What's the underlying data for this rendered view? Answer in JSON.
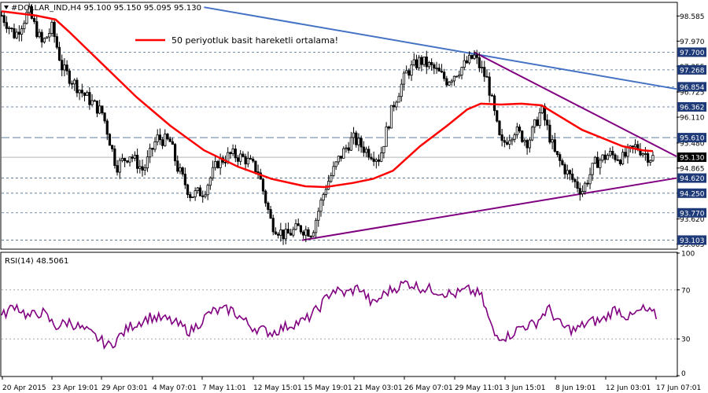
{
  "header": {
    "title": "#DOLLAR_IND,H4  95.100 95.150 95.095 95.130",
    "legend": "50 periyotluk basit hareketli ortalama!"
  },
  "rsi": {
    "title": "RSI(14) 48.5061",
    "levels": [
      "100",
      "70",
      "30",
      "0"
    ]
  },
  "colors": {
    "background": "#ffffff",
    "frame": "#000000",
    "candle": "#000000",
    "ma": "#ff0000",
    "rsi": "#800080",
    "blue_trend": "#4472c4",
    "purple_trend": "#800080",
    "grid": "#4a6a8a",
    "label_bg": "#1e3a78",
    "current_label_bg": "#000000"
  },
  "chart_data": {
    "type": "candlestick",
    "symbol": "#DOLLAR_IND",
    "timeframe": "H4",
    "last_price": 95.13,
    "ylim": [
      92.9,
      98.9
    ],
    "y_ticks": [
      "98.585",
      "97.970",
      "97.355",
      "96.725",
      "96.110",
      "95.480",
      "94.865",
      "94.250",
      "93.620",
      "93.005"
    ],
    "price_labels": [
      {
        "text": "97.700",
        "value": 97.7
      },
      {
        "text": "97.268",
        "value": 97.268
      },
      {
        "text": "96.854",
        "value": 96.854
      },
      {
        "text": "96.362",
        "value": 96.362
      },
      {
        "text": "95.610",
        "value": 95.61
      },
      {
        "text": "94.620",
        "value": 94.62
      },
      {
        "text": "94.250",
        "value": 94.25
      },
      {
        "text": "93.770",
        "value": 93.77
      },
      {
        "text": "93.103",
        "value": 93.103
      }
    ],
    "current_label": {
      "text": "95.130",
      "value": 95.13
    },
    "x_labels": [
      "20 Apr 2015",
      "23 Apr 19:01",
      "29 Apr 03:01",
      "4 May 07:01",
      "7 May 11:01",
      "12 May 15:01",
      "15 May 19:01",
      "21 May 03:01",
      "26 May 07:01",
      "29 May 11:01",
      "3 Jun 15:01",
      "8 Jun 19:01",
      "12 Jun 03:01",
      "17 Jun 07:01"
    ],
    "price_path": [
      [
        0,
        98.6
      ],
      [
        0.02,
        98.1
      ],
      [
        0.04,
        98.7
      ],
      [
        0.06,
        97.9
      ],
      [
        0.075,
        98.3
      ],
      [
        0.09,
        97.3
      ],
      [
        0.12,
        96.7
      ],
      [
        0.15,
        96.2
      ],
      [
        0.17,
        94.9
      ],
      [
        0.19,
        95.2
      ],
      [
        0.21,
        94.8
      ],
      [
        0.23,
        95.6
      ],
      [
        0.25,
        95.5
      ],
      [
        0.26,
        94.9
      ],
      [
        0.28,
        94.2
      ],
      [
        0.3,
        94.3
      ],
      [
        0.32,
        95.0
      ],
      [
        0.34,
        95.2
      ],
      [
        0.36,
        95.1
      ],
      [
        0.38,
        94.8
      ],
      [
        0.4,
        93.5
      ],
      [
        0.42,
        93.2
      ],
      [
        0.44,
        93.4
      ],
      [
        0.46,
        93.3
      ],
      [
        0.48,
        94.4
      ],
      [
        0.5,
        95.1
      ],
      [
        0.52,
        95.6
      ],
      [
        0.54,
        95.3
      ],
      [
        0.56,
        95.1
      ],
      [
        0.58,
        96.4
      ],
      [
        0.6,
        97.2
      ],
      [
        0.62,
        97.5
      ],
      [
        0.64,
        97.3
      ],
      [
        0.66,
        97.0
      ],
      [
        0.68,
        97.3
      ],
      [
        0.7,
        97.6
      ],
      [
        0.72,
        97.0
      ],
      [
        0.74,
        95.4
      ],
      [
        0.76,
        95.8
      ],
      [
        0.78,
        95.5
      ],
      [
        0.8,
        96.3
      ],
      [
        0.82,
        95.2
      ],
      [
        0.84,
        94.7
      ],
      [
        0.86,
        94.3
      ],
      [
        0.88,
        95.0
      ],
      [
        0.9,
        95.2
      ],
      [
        0.92,
        95.1
      ],
      [
        0.94,
        95.4
      ],
      [
        0.96,
        95.13
      ]
    ],
    "ma_path": [
      [
        0,
        98.7
      ],
      [
        0.05,
        98.6
      ],
      [
        0.08,
        98.5
      ],
      [
        0.1,
        98.2
      ],
      [
        0.15,
        97.4
      ],
      [
        0.2,
        96.6
      ],
      [
        0.25,
        95.9
      ],
      [
        0.3,
        95.3
      ],
      [
        0.35,
        94.9
      ],
      [
        0.4,
        94.6
      ],
      [
        0.45,
        94.42
      ],
      [
        0.48,
        94.4
      ],
      [
        0.52,
        94.5
      ],
      [
        0.55,
        94.6
      ],
      [
        0.58,
        94.8
      ],
      [
        0.62,
        95.4
      ],
      [
        0.66,
        95.9
      ],
      [
        0.69,
        96.3
      ],
      [
        0.71,
        96.44
      ],
      [
        0.74,
        96.42
      ],
      [
        0.77,
        96.44
      ],
      [
        0.8,
        96.4
      ],
      [
        0.83,
        96.1
      ],
      [
        0.86,
        95.8
      ],
      [
        0.89,
        95.6
      ],
      [
        0.92,
        95.4
      ],
      [
        0.95,
        95.3
      ],
      [
        0.965,
        95.28
      ]
    ],
    "trendlines": [
      {
        "color": "blue",
        "start": [
          0.3,
          98.8
        ],
        "end": [
          1.0,
          96.8
        ]
      },
      {
        "color": "purple",
        "start": [
          0.7,
          97.7
        ],
        "end": [
          1.0,
          95.15
        ]
      },
      {
        "color": "purple",
        "start": [
          0.445,
          93.1
        ],
        "end": [
          1.0,
          94.62
        ]
      }
    ],
    "rsi_ylim": [
      0,
      100
    ],
    "rsi_path": [
      [
        0,
        48
      ],
      [
        0.02,
        58
      ],
      [
        0.04,
        48
      ],
      [
        0.06,
        52
      ],
      [
        0.08,
        40
      ],
      [
        0.1,
        44
      ],
      [
        0.13,
        35
      ],
      [
        0.16,
        24
      ],
      [
        0.19,
        40
      ],
      [
        0.22,
        48
      ],
      [
        0.25,
        45
      ],
      [
        0.28,
        36
      ],
      [
        0.31,
        52
      ],
      [
        0.34,
        54
      ],
      [
        0.37,
        40
      ],
      [
        0.4,
        35
      ],
      [
        0.43,
        42
      ],
      [
        0.45,
        45
      ],
      [
        0.47,
        55
      ],
      [
        0.49,
        70
      ],
      [
        0.51,
        67
      ],
      [
        0.53,
        72
      ],
      [
        0.55,
        58
      ],
      [
        0.57,
        68
      ],
      [
        0.6,
        76
      ],
      [
        0.62,
        72
      ],
      [
        0.64,
        70
      ],
      [
        0.67,
        66
      ],
      [
        0.69,
        70
      ],
      [
        0.71,
        66
      ],
      [
        0.73,
        33
      ],
      [
        0.75,
        32
      ],
      [
        0.77,
        40
      ],
      [
        0.79,
        42
      ],
      [
        0.81,
        55
      ],
      [
        0.83,
        40
      ],
      [
        0.85,
        37
      ],
      [
        0.87,
        44
      ],
      [
        0.89,
        45
      ],
      [
        0.91,
        55
      ],
      [
        0.93,
        47
      ],
      [
        0.95,
        54
      ],
      [
        0.97,
        49
      ]
    ]
  }
}
